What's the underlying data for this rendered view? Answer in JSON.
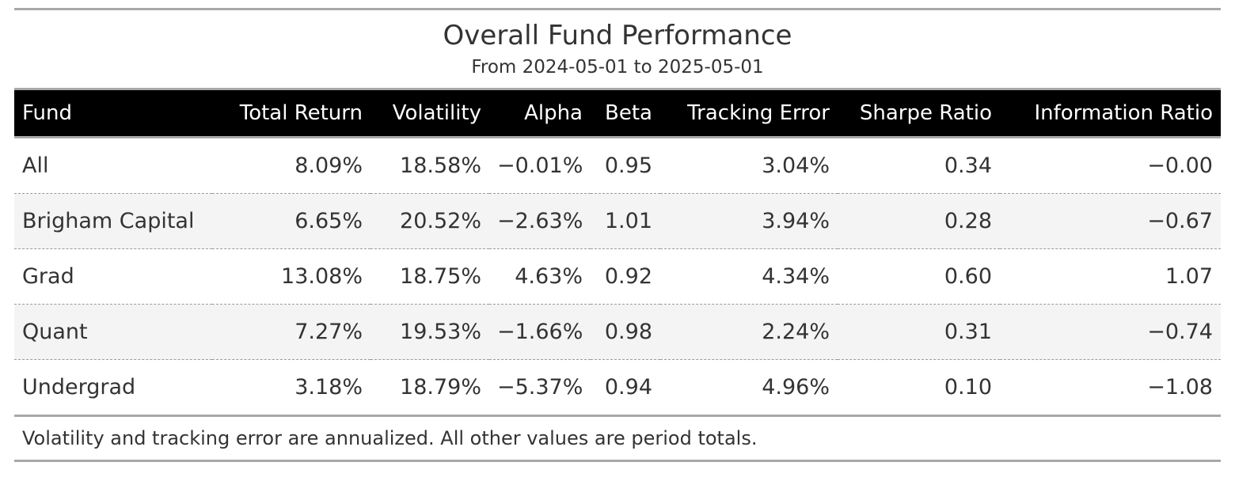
{
  "title": "Overall Fund Performance",
  "subtitle": "From 2024-05-01 to 2025-05-01",
  "columns": [
    "Fund",
    "Total Return",
    "Volatility",
    "Alpha",
    "Beta",
    "Tracking Error",
    "Sharpe Ratio",
    "Information Ratio"
  ],
  "rows": [
    [
      "All",
      "8.09%",
      "18.58%",
      "−0.01%",
      "0.95",
      "3.04%",
      "0.34",
      "−0.00"
    ],
    [
      "Brigham Capital",
      "6.65%",
      "20.52%",
      "−2.63%",
      "1.01",
      "3.94%",
      "0.28",
      "−0.67"
    ],
    [
      "Grad",
      "13.08%",
      "18.75%",
      "4.63%",
      "0.92",
      "4.34%",
      "0.60",
      "1.07"
    ],
    [
      "Quant",
      "7.27%",
      "19.53%",
      "−1.66%",
      "0.98",
      "2.24%",
      "0.31",
      "−0.74"
    ],
    [
      "Undergrad",
      "3.18%",
      "18.79%",
      "−5.37%",
      "0.94",
      "4.96%",
      "0.10",
      "−1.08"
    ]
  ],
  "footnote": "Volatility and tracking error are annualized. All other values are period totals.",
  "colors": {
    "header_bg": "#000000",
    "header_text": "#ffffff",
    "rule": "#a8a8a8",
    "stripe": "#f4f4f4",
    "text": "#333333"
  }
}
